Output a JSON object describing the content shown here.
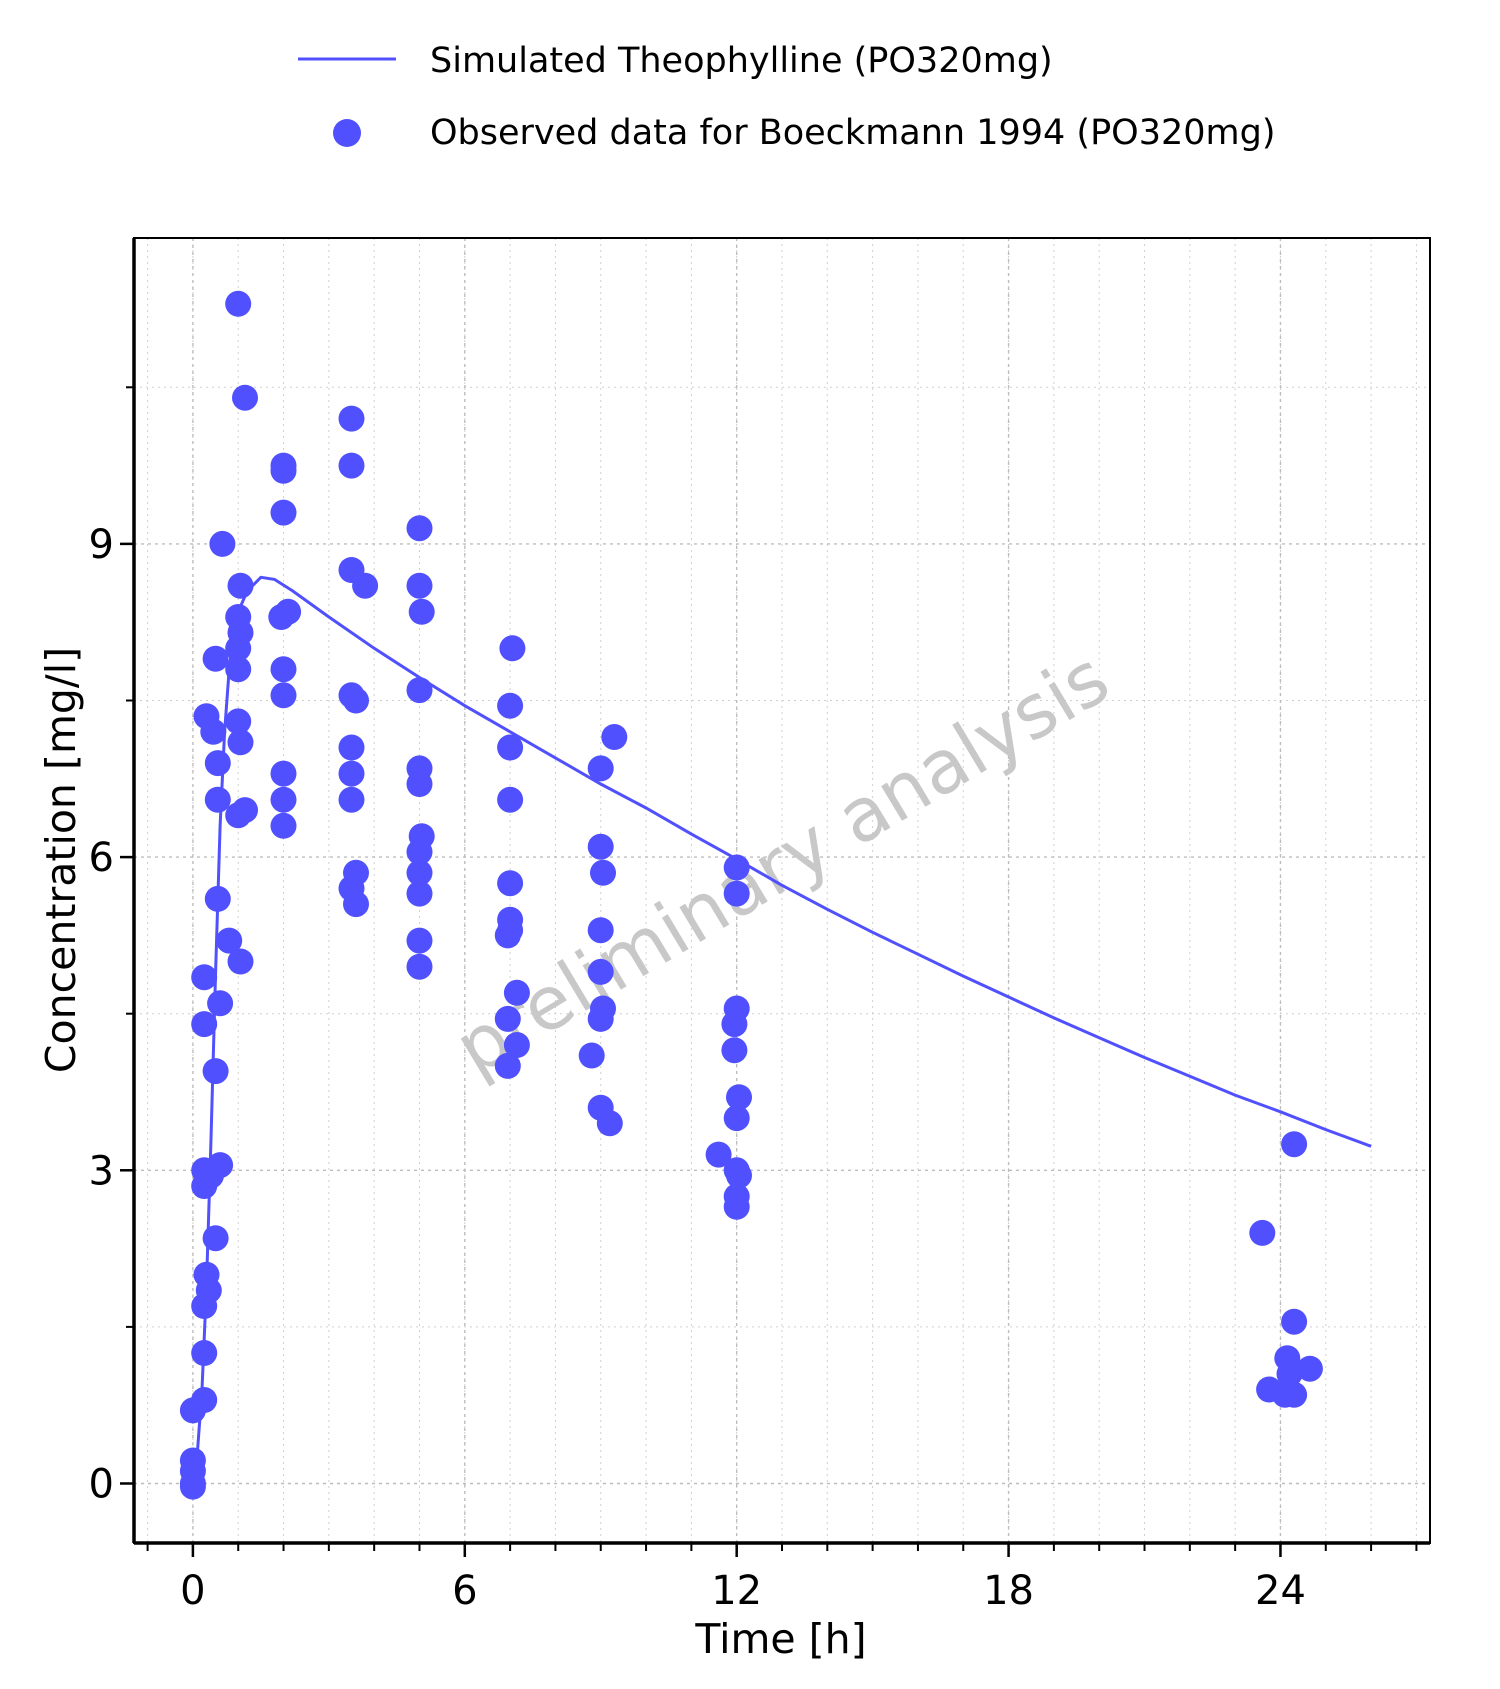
{
  "chart_data": {
    "type": "scatter",
    "xlabel": "Time [h]",
    "ylabel": "Concentration [mg/l]",
    "xlim": [
      -1.3,
      27.3
    ],
    "ylim": [
      -0.57,
      11.93
    ],
    "xticks": [
      0,
      6,
      12,
      18,
      24
    ],
    "yticks": [
      0,
      3,
      6,
      9
    ],
    "x_minor_step": 1,
    "y_minor_step": 1.5,
    "grid": true,
    "legend_position": "top",
    "watermark": "preliminary analysis",
    "colors": {
      "series": "#5050ff",
      "grid": "#d0d0d0",
      "watermark": "#c8c8c8"
    },
    "series": [
      {
        "name": "Simulated Theophylline (PO320mg)",
        "kind": "line",
        "x": [
          0,
          0.1,
          0.2,
          0.3,
          0.4,
          0.5,
          0.6,
          0.7,
          0.8,
          0.9,
          1.0,
          1.2,
          1.5,
          1.8,
          2.2,
          3,
          4,
          5,
          6,
          7,
          8,
          9,
          10,
          11,
          12,
          13,
          14,
          15,
          16,
          17,
          18,
          19,
          20,
          21,
          22,
          23,
          24,
          25,
          26
        ],
        "y": [
          0,
          0.3,
          0.9,
          1.9,
          3.3,
          4.9,
          6.3,
          7.2,
          7.8,
          8.15,
          8.35,
          8.55,
          8.68,
          8.66,
          8.55,
          8.3,
          8.0,
          7.72,
          7.45,
          7.2,
          6.95,
          6.7,
          6.47,
          6.22,
          5.98,
          5.73,
          5.5,
          5.28,
          5.07,
          4.86,
          4.66,
          4.46,
          4.27,
          4.08,
          3.9,
          3.72,
          3.56,
          3.39,
          3.23
        ]
      },
      {
        "name": "Observed data for Boeckmann 1994 (PO320mg)",
        "kind": "scatter",
        "points": [
          [
            0,
            0.7
          ],
          [
            0,
            0.22
          ],
          [
            0,
            0.12
          ],
          [
            0,
            0.0
          ],
          [
            0,
            -0.03
          ],
          [
            0.25,
            0.8
          ],
          [
            0.25,
            1.25
          ],
          [
            0.25,
            1.7
          ],
          [
            0.25,
            2.85
          ],
          [
            0.25,
            3.0
          ],
          [
            0.25,
            4.4
          ],
          [
            0.25,
            4.85
          ],
          [
            0.3,
            7.35
          ],
          [
            0.3,
            2.0
          ],
          [
            0.35,
            1.85
          ],
          [
            0.4,
            2.95
          ],
          [
            0.45,
            7.2
          ],
          [
            0.5,
            2.35
          ],
          [
            0.5,
            3.95
          ],
          [
            0.5,
            7.9
          ],
          [
            0.55,
            5.6
          ],
          [
            0.55,
            6.9
          ],
          [
            0.55,
            6.55
          ],
          [
            0.6,
            3.05
          ],
          [
            0.6,
            4.6
          ],
          [
            0.65,
            9.0
          ],
          [
            0.8,
            5.2
          ],
          [
            1.0,
            7.3
          ],
          [
            1.0,
            6.4
          ],
          [
            1.0,
            8.3
          ],
          [
            1.0,
            8.0
          ],
          [
            1.0,
            7.8
          ],
          [
            1.0,
            11.3
          ],
          [
            1.05,
            8.6
          ],
          [
            1.05,
            8.15
          ],
          [
            1.05,
            7.1
          ],
          [
            1.05,
            5.0
          ],
          [
            1.15,
            6.45
          ],
          [
            1.15,
            10.4
          ],
          [
            2.0,
            9.75
          ],
          [
            2.0,
            9.7
          ],
          [
            2.0,
            9.3
          ],
          [
            1.95,
            8.3
          ],
          [
            2.1,
            8.35
          ],
          [
            2.0,
            7.8
          ],
          [
            2.0,
            7.55
          ],
          [
            2.0,
            6.8
          ],
          [
            2.0,
            6.55
          ],
          [
            2.0,
            6.3
          ],
          [
            3.5,
            10.2
          ],
          [
            3.5,
            9.75
          ],
          [
            3.5,
            8.75
          ],
          [
            3.8,
            8.6
          ],
          [
            3.5,
            7.55
          ],
          [
            3.6,
            7.5
          ],
          [
            3.5,
            7.05
          ],
          [
            3.5,
            6.8
          ],
          [
            3.5,
            6.55
          ],
          [
            3.6,
            5.85
          ],
          [
            3.5,
            5.7
          ],
          [
            3.6,
            5.55
          ],
          [
            5.0,
            9.15
          ],
          [
            5.0,
            8.6
          ],
          [
            5.05,
            8.35
          ],
          [
            5.0,
            7.6
          ],
          [
            5.0,
            6.85
          ],
          [
            5.0,
            6.7
          ],
          [
            5.05,
            6.2
          ],
          [
            5.0,
            6.05
          ],
          [
            5.0,
            5.85
          ],
          [
            5.0,
            5.65
          ],
          [
            5.0,
            5.2
          ],
          [
            5.0,
            4.95
          ],
          [
            7.05,
            8.0
          ],
          [
            7.0,
            7.45
          ],
          [
            7.0,
            7.05
          ],
          [
            7.0,
            6.55
          ],
          [
            7.0,
            5.75
          ],
          [
            7.0,
            5.4
          ],
          [
            6.95,
            5.25
          ],
          [
            7.0,
            5.3
          ],
          [
            7.15,
            4.7
          ],
          [
            6.95,
            4.45
          ],
          [
            7.15,
            4.2
          ],
          [
            6.95,
            4.0
          ],
          [
            9.0,
            6.85
          ],
          [
            9.3,
            7.15
          ],
          [
            9.0,
            6.1
          ],
          [
            9.05,
            5.85
          ],
          [
            9.0,
            5.3
          ],
          [
            9.0,
            4.9
          ],
          [
            9.05,
            4.55
          ],
          [
            9.0,
            4.45
          ],
          [
            8.8,
            4.1
          ],
          [
            9.0,
            3.6
          ],
          [
            9.2,
            3.45
          ],
          [
            12.0,
            5.9
          ],
          [
            12.0,
            5.65
          ],
          [
            12.0,
            4.55
          ],
          [
            11.95,
            4.4
          ],
          [
            11.95,
            4.15
          ],
          [
            12.05,
            3.7
          ],
          [
            12.0,
            3.5
          ],
          [
            11.6,
            3.15
          ],
          [
            12.0,
            3.0
          ],
          [
            12.05,
            2.95
          ],
          [
            12.0,
            2.75
          ],
          [
            12.0,
            2.65
          ],
          [
            23.6,
            2.4
          ],
          [
            24.3,
            3.25
          ],
          [
            24.3,
            1.55
          ],
          [
            24.15,
            1.2
          ],
          [
            24.2,
            1.05
          ],
          [
            24.65,
            1.1
          ],
          [
            23.75,
            0.9
          ],
          [
            24.1,
            0.85
          ],
          [
            24.3,
            0.85
          ]
        ]
      }
    ]
  }
}
